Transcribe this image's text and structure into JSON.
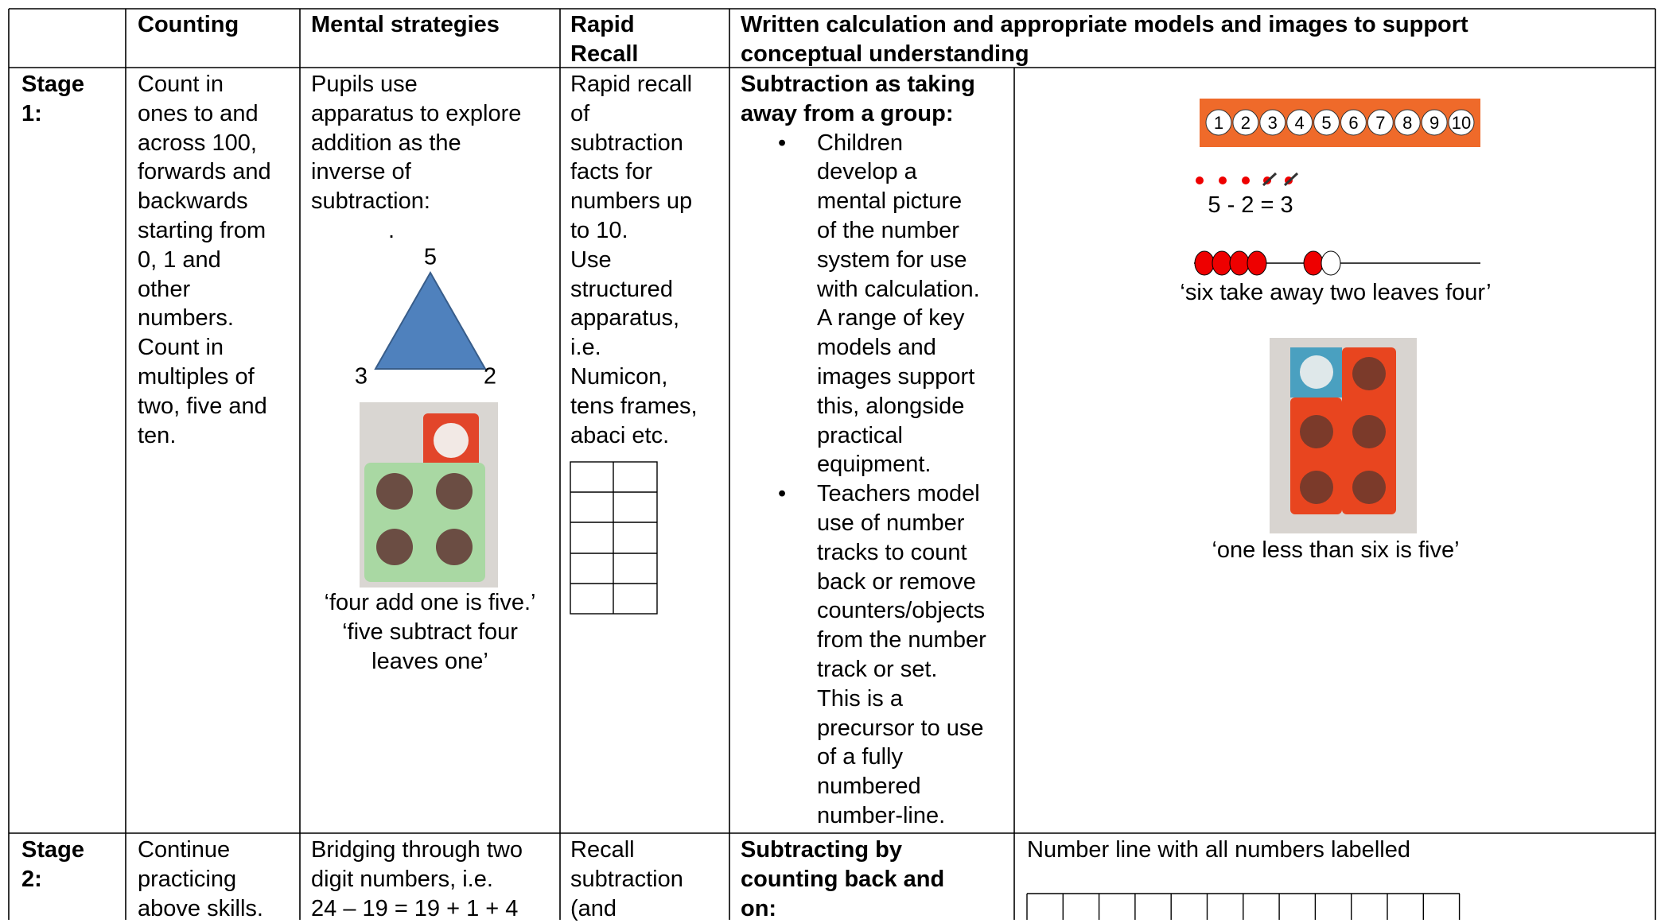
{
  "table": {
    "header": {
      "counting": "Counting",
      "mental": "Mental strategies",
      "rapid": [
        "Rapid",
        "Recall"
      ],
      "written": [
        "Written calculation and appropriate models and images to support",
        "conceptual understanding"
      ]
    },
    "rows": [
      {
        "stage": [
          "Stage",
          "1:"
        ],
        "counting": [
          "Count in",
          "ones to and",
          "across 100,",
          "forwards and",
          "backwards",
          "starting from",
          "0, 1 and",
          "other",
          "numbers.",
          "Count in",
          "multiples of",
          "two, five and",
          "ten."
        ],
        "mental": [
          "Pupils use",
          "apparatus to explore",
          "addition as the",
          "inverse of",
          "subtraction:"
        ],
        "mental_dot": ".",
        "triangle": {
          "top": "5",
          "left": "3",
          "right": "2"
        },
        "mental_caption": [
          "‘four add one is five.’",
          "‘five subtract four",
          "leaves one’"
        ],
        "rapid": [
          "Rapid recall",
          "of",
          "subtraction",
          "facts for",
          "numbers up",
          "to 10.",
          "Use",
          "structured",
          "apparatus,",
          "i.e.",
          "Numicon,",
          "tens frames,",
          "abaci etc."
        ],
        "written_heading": [
          "Subtraction as taking",
          "away from a group:"
        ],
        "bullets": [
          [
            "Children",
            "develop a",
            "mental picture",
            "of the number",
            "system for use",
            "with calculation.",
            "A range of key",
            "models and",
            "images support",
            "this, alongside",
            "practical",
            "equipment."
          ],
          [
            "Teachers model",
            "use of number",
            "tracks to count",
            "back or remove",
            "counters/objects",
            "from the number",
            "track or set.",
            "This is a",
            "precursor to use",
            "of a fully",
            "numbered",
            "number-line."
          ]
        ],
        "models": {
          "number_track": [
            "1",
            "2",
            "3",
            "4",
            "5",
            "6",
            "7",
            "8",
            "9",
            "10"
          ],
          "equation": "5 - 2 = 3",
          "bead_caption": "‘six take away two leaves four’",
          "numicon_caption": "‘one less than six is five’"
        }
      },
      {
        "stage": [
          "Stage",
          "2:"
        ],
        "counting": [
          "Continue",
          "practicing",
          "above skills."
        ],
        "mental": [
          "Bridging through two",
          "digit numbers, i.e.",
          "24 – 19 = 19 + 1 + 4"
        ],
        "rapid": [
          "Recall",
          "subtraction",
          "(and"
        ],
        "written_heading": [
          "Subtracting by",
          "counting back and",
          "on:"
        ],
        "models_text": "Number line with all numbers labelled"
      }
    ]
  }
}
